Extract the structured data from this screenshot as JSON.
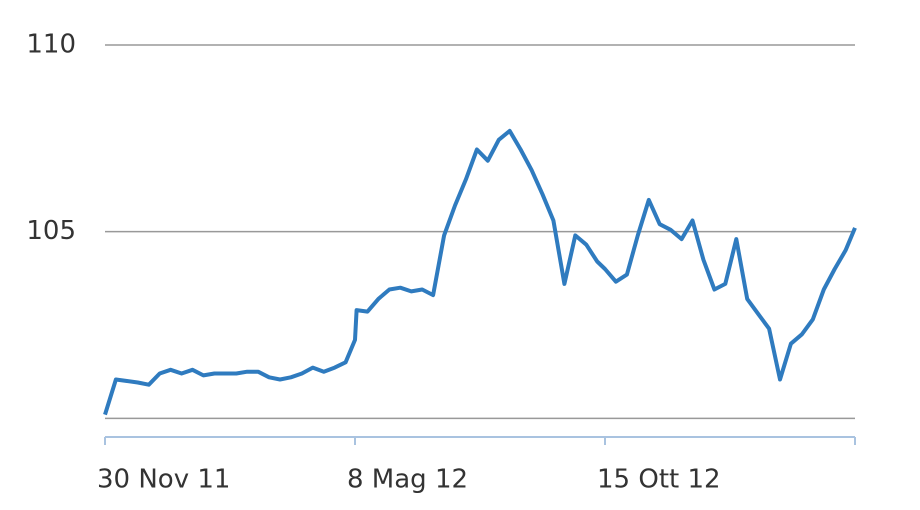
{
  "chart_data": {
    "type": "line",
    "x": [
      "2011-11-30",
      "2011-12-07",
      "2011-12-14",
      "2011-12-21",
      "2011-12-28",
      "2012-01-04",
      "2012-01-11",
      "2012-01-18",
      "2012-01-25",
      "2012-02-01",
      "2012-02-08",
      "2012-02-15",
      "2012-02-22",
      "2012-02-29",
      "2012-03-07",
      "2012-03-14",
      "2012-03-21",
      "2012-03-28",
      "2012-04-04",
      "2012-04-11",
      "2012-04-18",
      "2012-04-25",
      "2012-05-02",
      "2012-05-08",
      "2012-05-09",
      "2012-05-16",
      "2012-05-23",
      "2012-05-30",
      "2012-06-06",
      "2012-06-13",
      "2012-06-20",
      "2012-06-27",
      "2012-07-04",
      "2012-07-11",
      "2012-07-18",
      "2012-07-25",
      "2012-08-01",
      "2012-08-08",
      "2012-08-15",
      "2012-08-22",
      "2012-08-29",
      "2012-09-05",
      "2012-09-12",
      "2012-09-19",
      "2012-09-26",
      "2012-10-03",
      "2012-10-10",
      "2012-10-15",
      "2012-10-22",
      "2012-10-29",
      "2012-11-05",
      "2012-11-12",
      "2012-11-19",
      "2012-11-26",
      "2012-12-03",
      "2012-12-10",
      "2012-12-17",
      "2012-12-24",
      "2012-12-31",
      "2013-01-07",
      "2013-01-14",
      "2013-01-21",
      "2013-01-28",
      "2013-02-04",
      "2013-02-11",
      "2013-02-18",
      "2013-02-25",
      "2013-03-04",
      "2013-03-11",
      "2013-03-18",
      "2013-03-24"
    ],
    "series": [
      {
        "color": "#2f7bbf",
        "values": [
          100.1,
          101.04,
          101.0,
          100.96,
          100.9,
          101.2,
          101.3,
          101.2,
          101.3,
          101.15,
          101.2,
          101.2,
          101.2,
          101.25,
          101.25,
          101.1,
          101.04,
          101.1,
          101.2,
          101.36,
          101.25,
          101.36,
          101.5,
          102.1,
          102.9,
          102.86,
          103.2,
          103.45,
          103.5,
          103.4,
          103.45,
          103.3,
          104.9,
          105.7,
          106.4,
          107.2,
          106.9,
          107.46,
          107.7,
          107.2,
          106.65,
          106.0,
          105.3,
          103.6,
          104.9,
          104.65,
          104.2,
          104.0,
          103.66,
          103.85,
          104.9,
          105.85,
          105.2,
          105.05,
          104.8,
          105.3,
          104.25,
          103.45,
          103.6,
          104.8,
          103.2,
          102.8,
          102.4,
          101.04,
          102.0,
          102.25,
          102.65,
          103.45,
          104.0,
          104.5,
          105.1
        ]
      }
    ],
    "xlim": [
      "2011-11-30",
      "2013-03-24"
    ],
    "xticks": [
      {
        "value": "2011-11-30",
        "label": "30 Nov 11"
      },
      {
        "value": "2012-05-08",
        "label": "8 Mag 12"
      },
      {
        "value": "2012-10-15",
        "label": "15 Ott 12"
      }
    ],
    "ylim": [
      99.5,
      110
    ],
    "yticks": [
      105,
      110
    ],
    "grid_lines": [
      100,
      105,
      110
    ]
  }
}
